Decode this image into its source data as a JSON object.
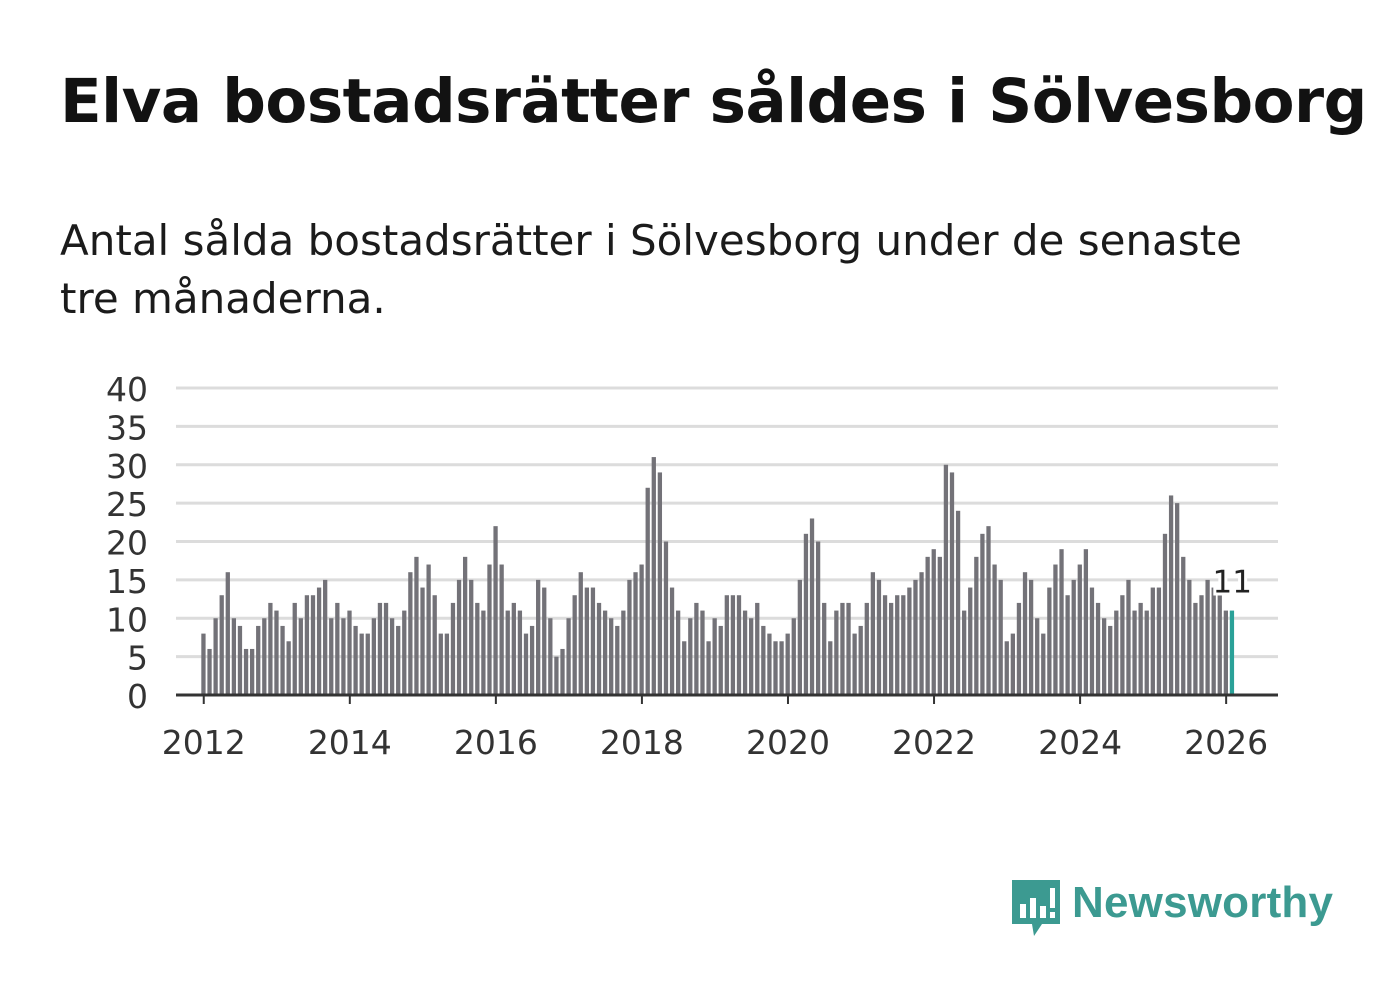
{
  "title": "Elva bostadsrätter såldes i Sölvesborg",
  "subtitle": "Antal sålda bostadsrätter i Sölvesborg under de senaste tre månaderna.",
  "colors": {
    "bar": "#737278",
    "highlight": "#2aa198",
    "grid": "#dcdcdc",
    "axis": "#333333",
    "brand": "#3c9a91"
  },
  "logo": {
    "text": "Newsworthy",
    "icon": "bar-chart-speech-bubble-icon"
  },
  "chart_data": {
    "type": "bar",
    "title": "Elva bostadsrätter såldes i Sölvesborg",
    "xlabel": "",
    "ylabel": "",
    "ylim": [
      0,
      40
    ],
    "yticks": [
      "0",
      "5",
      "10",
      "15",
      "20",
      "25",
      "30",
      "35",
      "40"
    ],
    "xticks": [
      "2012",
      "2014",
      "2016",
      "2018",
      "2020",
      "2022",
      "2024",
      "2026"
    ],
    "start": "2012-01",
    "frequency": "monthly",
    "values": [
      8,
      6,
      10,
      13,
      16,
      10,
      9,
      6,
      6,
      9,
      10,
      12,
      11,
      9,
      7,
      12,
      10,
      13,
      13,
      14,
      15,
      10,
      12,
      10,
      11,
      9,
      8,
      8,
      10,
      12,
      12,
      10,
      9,
      11,
      16,
      18,
      14,
      17,
      13,
      8,
      8,
      12,
      15,
      18,
      15,
      12,
      11,
      17,
      22,
      17,
      11,
      12,
      11,
      8,
      9,
      15,
      14,
      10,
      5,
      6,
      10,
      13,
      16,
      14,
      14,
      12,
      11,
      10,
      9,
      11,
      15,
      16,
      17,
      27,
      31,
      29,
      20,
      14,
      11,
      7,
      10,
      12,
      11,
      7,
      10,
      9,
      13,
      13,
      13,
      11,
      10,
      12,
      9,
      8,
      7,
      7,
      8,
      10,
      15,
      21,
      23,
      20,
      12,
      7,
      11,
      12,
      12,
      8,
      9,
      12,
      16,
      15,
      13,
      12,
      13,
      13,
      14,
      15,
      16,
      18,
      19,
      18,
      30,
      29,
      24,
      11,
      14,
      18,
      21,
      22,
      17,
      15,
      7,
      8,
      12,
      16,
      15,
      10,
      8,
      14,
      17,
      19,
      13,
      15,
      17,
      19,
      14,
      12,
      10,
      9,
      11,
      13,
      15,
      11,
      12,
      11,
      14,
      14,
      21,
      26,
      25,
      18,
      15,
      12,
      13,
      15,
      14,
      13,
      11,
      11
    ],
    "highlight_last": true,
    "annotation": {
      "label": "11",
      "target": "last"
    }
  }
}
